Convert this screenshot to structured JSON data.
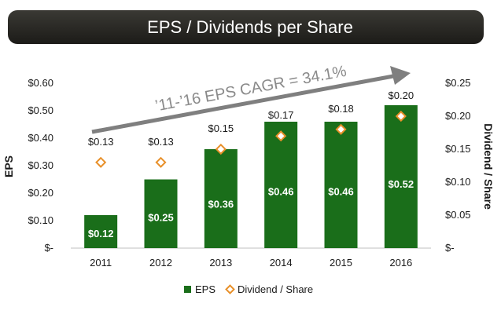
{
  "chart_data": {
    "type": "bar",
    "title": "EPS / Dividends per Share",
    "categories": [
      "2011",
      "2012",
      "2013",
      "2014",
      "2015",
      "2016"
    ],
    "series": [
      {
        "name": "EPS",
        "type": "bar",
        "axis": "left",
        "values": [
          0.12,
          0.25,
          0.36,
          0.46,
          0.46,
          0.52
        ],
        "labels": [
          "$0.12",
          "$0.25",
          "$0.36",
          "$0.46",
          "$0.46",
          "$0.52"
        ],
        "color": "#1a6e1a"
      },
      {
        "name": "Dividend / Share",
        "type": "scatter",
        "axis": "right",
        "values": [
          0.13,
          0.13,
          0.15,
          0.17,
          0.18,
          0.2
        ],
        "labels": [
          "$0.13",
          "$0.13",
          "$0.15",
          "$0.17",
          "$0.18",
          "$0.20"
        ],
        "color": "#e8902a"
      }
    ],
    "ylabel": "EPS",
    "ylabel_right": "Dividend / Share",
    "ylim": [
      0,
      0.6
    ],
    "ylim_right": [
      0,
      0.25
    ],
    "yticks": [
      0,
      0.1,
      0.2,
      0.3,
      0.4,
      0.5,
      0.6
    ],
    "yticks_labels": [
      "$-",
      "$0.10",
      "$0.20",
      "$0.30",
      "$0.40",
      "$0.50",
      "$0.60"
    ],
    "yticks_right": [
      0,
      0.05,
      0.1,
      0.15,
      0.2,
      0.25
    ],
    "yticks_right_labels": [
      "$-",
      "$0.05",
      "$0.10",
      "$0.15",
      "$0.20",
      "$0.25"
    ],
    "annotation": "’11-’16 EPS CAGR = 34.1%",
    "legend_position": "bottom",
    "grid": false
  },
  "colors": {
    "title_bg": "#2b2a26",
    "bar": "#1a6e1a",
    "marker": "#e8902a",
    "arrow": "#7f7f7f"
  }
}
